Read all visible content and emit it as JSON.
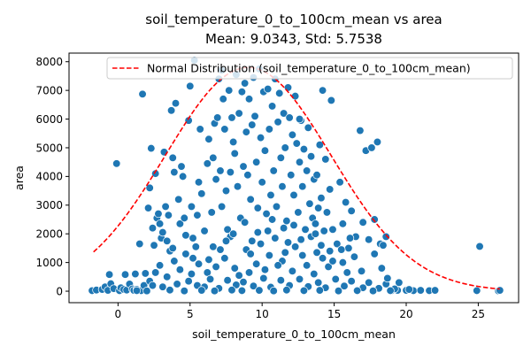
{
  "chart_data": {
    "type": "scatter",
    "title": "soil_temperature_0_to_100cm_mean vs area",
    "subtitle": "Mean: 9.0343, Std: 5.7538",
    "xlabel": "soil_temperature_0_to_100cm_mean",
    "ylabel": "area",
    "xlim": [
      -3.4,
      27.8
    ],
    "ylim": [
      -400,
      8300
    ],
    "xticks": [
      0,
      5,
      10,
      15,
      20,
      25
    ],
    "yticks": [
      0,
      1000,
      2000,
      3000,
      4000,
      5000,
      6000,
      7000,
      8000
    ],
    "grid": false,
    "legend_position": "top-right",
    "colors": {
      "points": "#1f77b4",
      "normal_curve": "#ff0000"
    },
    "normal_curve": {
      "name": "Normal Distribution (soil_temperature_0_to_100cm_mean)",
      "mean": 9.0343,
      "std": 5.7538,
      "x_range": [
        -1.7,
        26.5
      ],
      "peak": 7800
    },
    "series": [
      {
        "points": [
          [
            -1.8,
            20
          ],
          [
            -1.5,
            40
          ],
          [
            -1.1,
            60
          ],
          [
            -0.9,
            150
          ],
          [
            -0.7,
            30
          ],
          [
            -0.6,
            580
          ],
          [
            -0.5,
            260
          ],
          [
            -0.3,
            90
          ],
          [
            -0.1,
            4450
          ],
          [
            0.1,
            20
          ],
          [
            0.2,
            120
          ],
          [
            0.4,
            60
          ],
          [
            0.6,
            40
          ],
          [
            0.8,
            250
          ],
          [
            1.0,
            80
          ],
          [
            1.1,
            30
          ],
          [
            1.2,
            600
          ],
          [
            1.3,
            60
          ],
          [
            1.5,
            1650
          ],
          [
            1.6,
            20
          ],
          [
            1.8,
            200
          ],
          [
            1.7,
            6870
          ],
          [
            2.1,
            2900
          ],
          [
            2.3,
            4980
          ],
          [
            2.2,
            3600
          ],
          [
            2.4,
            2200
          ],
          [
            2.5,
            1600
          ],
          [
            2.7,
            2550
          ],
          [
            2.8,
            2700
          ],
          [
            2.9,
            2350
          ],
          [
            3.0,
            1850
          ],
          [
            3.1,
            2050
          ],
          [
            2.6,
            4100
          ],
          [
            3.3,
            2950
          ],
          [
            3.4,
            1750
          ],
          [
            3.5,
            2650
          ],
          [
            3.2,
            4850
          ],
          [
            3.6,
            1400
          ],
          [
            3.8,
            4650
          ],
          [
            3.9,
            4150
          ],
          [
            4.0,
            6550
          ],
          [
            3.7,
            6300
          ],
          [
            4.2,
            3200
          ],
          [
            4.3,
            2350
          ],
          [
            4.4,
            4350
          ],
          [
            4.5,
            4000
          ],
          [
            4.6,
            2550
          ],
          [
            4.7,
            1950
          ],
          [
            4.9,
            5950
          ],
          [
            5.0,
            7150
          ],
          [
            5.1,
            2950
          ],
          [
            5.2,
            1150
          ],
          [
            5.4,
            1550
          ],
          [
            5.5,
            2650
          ],
          [
            5.6,
            3800
          ],
          [
            5.7,
            5650
          ],
          [
            5.8,
            3400
          ],
          [
            6.0,
            2100
          ],
          [
            6.2,
            4450
          ],
          [
            6.3,
            5300
          ],
          [
            6.5,
            2750
          ],
          [
            6.6,
            4650
          ],
          [
            6.7,
            5850
          ],
          [
            6.8,
            3900
          ],
          [
            6.9,
            6050
          ],
          [
            7.0,
            7400
          ],
          [
            7.1,
            4200
          ],
          [
            7.2,
            2950
          ],
          [
            7.3,
            6700
          ],
          [
            7.4,
            5650
          ],
          [
            7.5,
            3500
          ],
          [
            7.6,
            2150
          ],
          [
            7.7,
            7000
          ],
          [
            7.8,
            4150
          ],
          [
            7.9,
            6050
          ],
          [
            8.0,
            5200
          ],
          [
            8.1,
            4800
          ],
          [
            8.2,
            7550
          ],
          [
            8.3,
            3650
          ],
          [
            8.4,
            6200
          ],
          [
            8.5,
            2550
          ],
          [
            8.6,
            6950
          ],
          [
            8.7,
            4350
          ],
          [
            8.8,
            7250
          ],
          [
            8.9,
            5550
          ],
          [
            9.0,
            4050
          ],
          [
            9.1,
            6700
          ],
          [
            9.2,
            3200
          ],
          [
            9.3,
            5800
          ],
          [
            9.4,
            7450
          ],
          [
            9.5,
            6100
          ],
          [
            9.6,
            4500
          ],
          [
            9.7,
            2900
          ],
          [
            9.8,
            7750
          ],
          [
            9.9,
            5350
          ],
          [
            10.0,
            3800
          ],
          [
            10.1,
            6950
          ],
          [
            10.2,
            4900
          ],
          [
            10.3,
            2700
          ],
          [
            10.4,
            7050
          ],
          [
            10.5,
            5650
          ],
          [
            10.6,
            3350
          ],
          [
            10.7,
            6450
          ],
          [
            10.8,
            4200
          ],
          [
            10.9,
            7400
          ],
          [
            11.0,
            2950
          ],
          [
            11.1,
            5900
          ],
          [
            11.2,
            6900
          ],
          [
            11.3,
            4650
          ],
          [
            11.4,
            3650
          ],
          [
            11.5,
            6200
          ],
          [
            11.6,
            5000
          ],
          [
            11.7,
            2450
          ],
          [
            11.8,
            7100
          ],
          [
            11.9,
            6050
          ],
          [
            12.0,
            4050
          ],
          [
            12.1,
            5450
          ],
          [
            12.2,
            3350
          ],
          [
            12.3,
            6800
          ],
          [
            12.4,
            5150
          ],
          [
            12.5,
            2750
          ],
          [
            12.6,
            4500
          ],
          [
            12.7,
            5950
          ],
          [
            12.8,
            3650
          ],
          [
            12.9,
            4950
          ],
          [
            13.0,
            2150
          ],
          [
            13.1,
            4200
          ],
          [
            13.2,
            5700
          ],
          [
            13.3,
            3050
          ],
          [
            13.4,
            4700
          ],
          [
            13.5,
            2550
          ],
          [
            13.6,
            3900
          ],
          [
            13.7,
            2350
          ],
          [
            13.8,
            4050
          ],
          [
            13.9,
            2900
          ],
          [
            14.0,
            5100
          ],
          [
            14.1,
            3250
          ],
          [
            14.2,
            7000
          ],
          [
            14.3,
            2100
          ],
          [
            14.4,
            4600
          ],
          [
            14.5,
            2750
          ],
          [
            14.8,
            6650
          ],
          [
            14.7,
            3550
          ],
          [
            14.9,
            2150
          ],
          [
            15.2,
            1650
          ],
          [
            15.4,
            3800
          ],
          [
            15.6,
            2350
          ],
          [
            15.8,
            3100
          ],
          [
            16.0,
            1500
          ],
          [
            16.2,
            2800
          ],
          [
            16.5,
            1900
          ],
          [
            16.8,
            5600
          ],
          [
            17.0,
            2400
          ],
          [
            17.2,
            4900
          ],
          [
            17.4,
            1800
          ],
          [
            17.6,
            5000
          ],
          [
            17.8,
            2500
          ],
          [
            18.0,
            5200
          ],
          [
            18.2,
            1650
          ],
          [
            18.4,
            1600
          ],
          [
            18.6,
            1900
          ],
          [
            19.0,
            20
          ],
          [
            19.4,
            30
          ],
          [
            20.0,
            30
          ],
          [
            20.5,
            20
          ],
          [
            21.0,
            30
          ],
          [
            21.6,
            20
          ],
          [
            22.0,
            30
          ],
          [
            24.9,
            20
          ],
          [
            25.1,
            1560
          ],
          [
            26.4,
            10
          ],
          [
            26.5,
            30
          ],
          [
            5.3,
            8050
          ],
          [
            7.2,
            7700
          ],
          [
            12.6,
            6000
          ],
          [
            10.5,
            1250
          ],
          [
            9.3,
            1750
          ],
          [
            11.4,
            1050
          ],
          [
            13.8,
            1350
          ],
          [
            6.6,
            1550
          ],
          [
            8.1,
            800
          ],
          [
            9.6,
            950
          ],
          [
            10.9,
            1850
          ],
          [
            12.3,
            1550
          ],
          [
            14.2,
            1150
          ],
          [
            15.6,
            1000
          ],
          [
            4.7,
            1300
          ],
          [
            5.6,
            950
          ],
          [
            7.4,
            1150
          ],
          [
            3.9,
            1050
          ],
          [
            16.4,
            1200
          ],
          [
            17.8,
            1300
          ],
          [
            8.9,
            1450
          ],
          [
            10.2,
            750
          ],
          [
            11.6,
            1350
          ],
          [
            13.1,
            900
          ],
          [
            6.2,
            650
          ],
          [
            7.8,
            1900
          ],
          [
            9.1,
            650
          ],
          [
            12.8,
            1250
          ],
          [
            14.6,
            850
          ],
          [
            15.9,
            650
          ],
          [
            2.9,
            900
          ],
          [
            4.3,
            750
          ],
          [
            5.1,
            600
          ],
          [
            6.8,
            850
          ],
          [
            8.4,
            550
          ],
          [
            9.9,
            1650
          ],
          [
            11.1,
            900
          ],
          [
            12.1,
            700
          ],
          [
            13.6,
            600
          ],
          [
            14.9,
            1050
          ],
          [
            16.9,
            700
          ],
          [
            18.3,
            800
          ],
          [
            3.4,
            500
          ],
          [
            4.9,
            350
          ],
          [
            6.4,
            420
          ],
          [
            7.6,
            380
          ],
          [
            8.7,
            320
          ],
          [
            10.1,
            450
          ],
          [
            11.3,
            380
          ],
          [
            12.6,
            420
          ],
          [
            13.9,
            300
          ],
          [
            15.1,
            420
          ],
          [
            16.2,
            350
          ],
          [
            17.4,
            300
          ],
          [
            18.6,
            250
          ],
          [
            2.2,
            350
          ],
          [
            3.1,
            150
          ],
          [
            4.1,
            250
          ],
          [
            5.5,
            200
          ],
          [
            6.0,
            150
          ],
          [
            7.0,
            100
          ],
          [
            8.2,
            220
          ],
          [
            9.4,
            180
          ],
          [
            10.6,
            140
          ],
          [
            11.9,
            200
          ],
          [
            13.2,
            160
          ],
          [
            14.4,
            120
          ],
          [
            15.7,
            180
          ],
          [
            17.0,
            120
          ],
          [
            18.1,
            100
          ],
          [
            19.2,
            80
          ],
          [
            1.3,
            20
          ],
          [
            2.0,
            10
          ],
          [
            3.6,
            40
          ],
          [
            4.6,
            10
          ],
          [
            5.8,
            30
          ],
          [
            6.7,
            10
          ],
          [
            7.9,
            40
          ],
          [
            8.6,
            20
          ],
          [
            9.8,
            30
          ],
          [
            10.8,
            10
          ],
          [
            11.7,
            40
          ],
          [
            12.9,
            20
          ],
          [
            14.0,
            30
          ],
          [
            15.3,
            10
          ],
          [
            16.6,
            20
          ],
          [
            17.7,
            10
          ],
          [
            18.9,
            20
          ],
          [
            2.6,
            650
          ],
          [
            3.8,
            1500
          ],
          [
            5.2,
            1850
          ],
          [
            7.1,
            1450
          ],
          [
            8.0,
            2000
          ],
          [
            9.2,
            1300
          ],
          [
            10.4,
            2100
          ],
          [
            11.8,
            1700
          ],
          [
            13.4,
            1900
          ],
          [
            14.7,
            1400
          ],
          [
            16.1,
            1850
          ],
          [
            6.3,
            1100
          ],
          [
            12.2,
            2300
          ],
          [
            10.7,
            2500
          ],
          [
            8.8,
            2400
          ],
          [
            13.7,
            2000
          ],
          [
            11.5,
            2200
          ],
          [
            9.7,
            2050
          ],
          [
            12.7,
            1800
          ],
          [
            7.5,
            1750
          ],
          [
            14.1,
            1600
          ],
          [
            15.5,
            1450
          ],
          [
            0.5,
            580
          ],
          [
            1.9,
            620
          ],
          [
            2.4,
            200
          ],
          [
            18.7,
            450
          ],
          [
            19.5,
            300
          ],
          [
            20.2,
            60
          ]
        ]
      }
    ]
  }
}
